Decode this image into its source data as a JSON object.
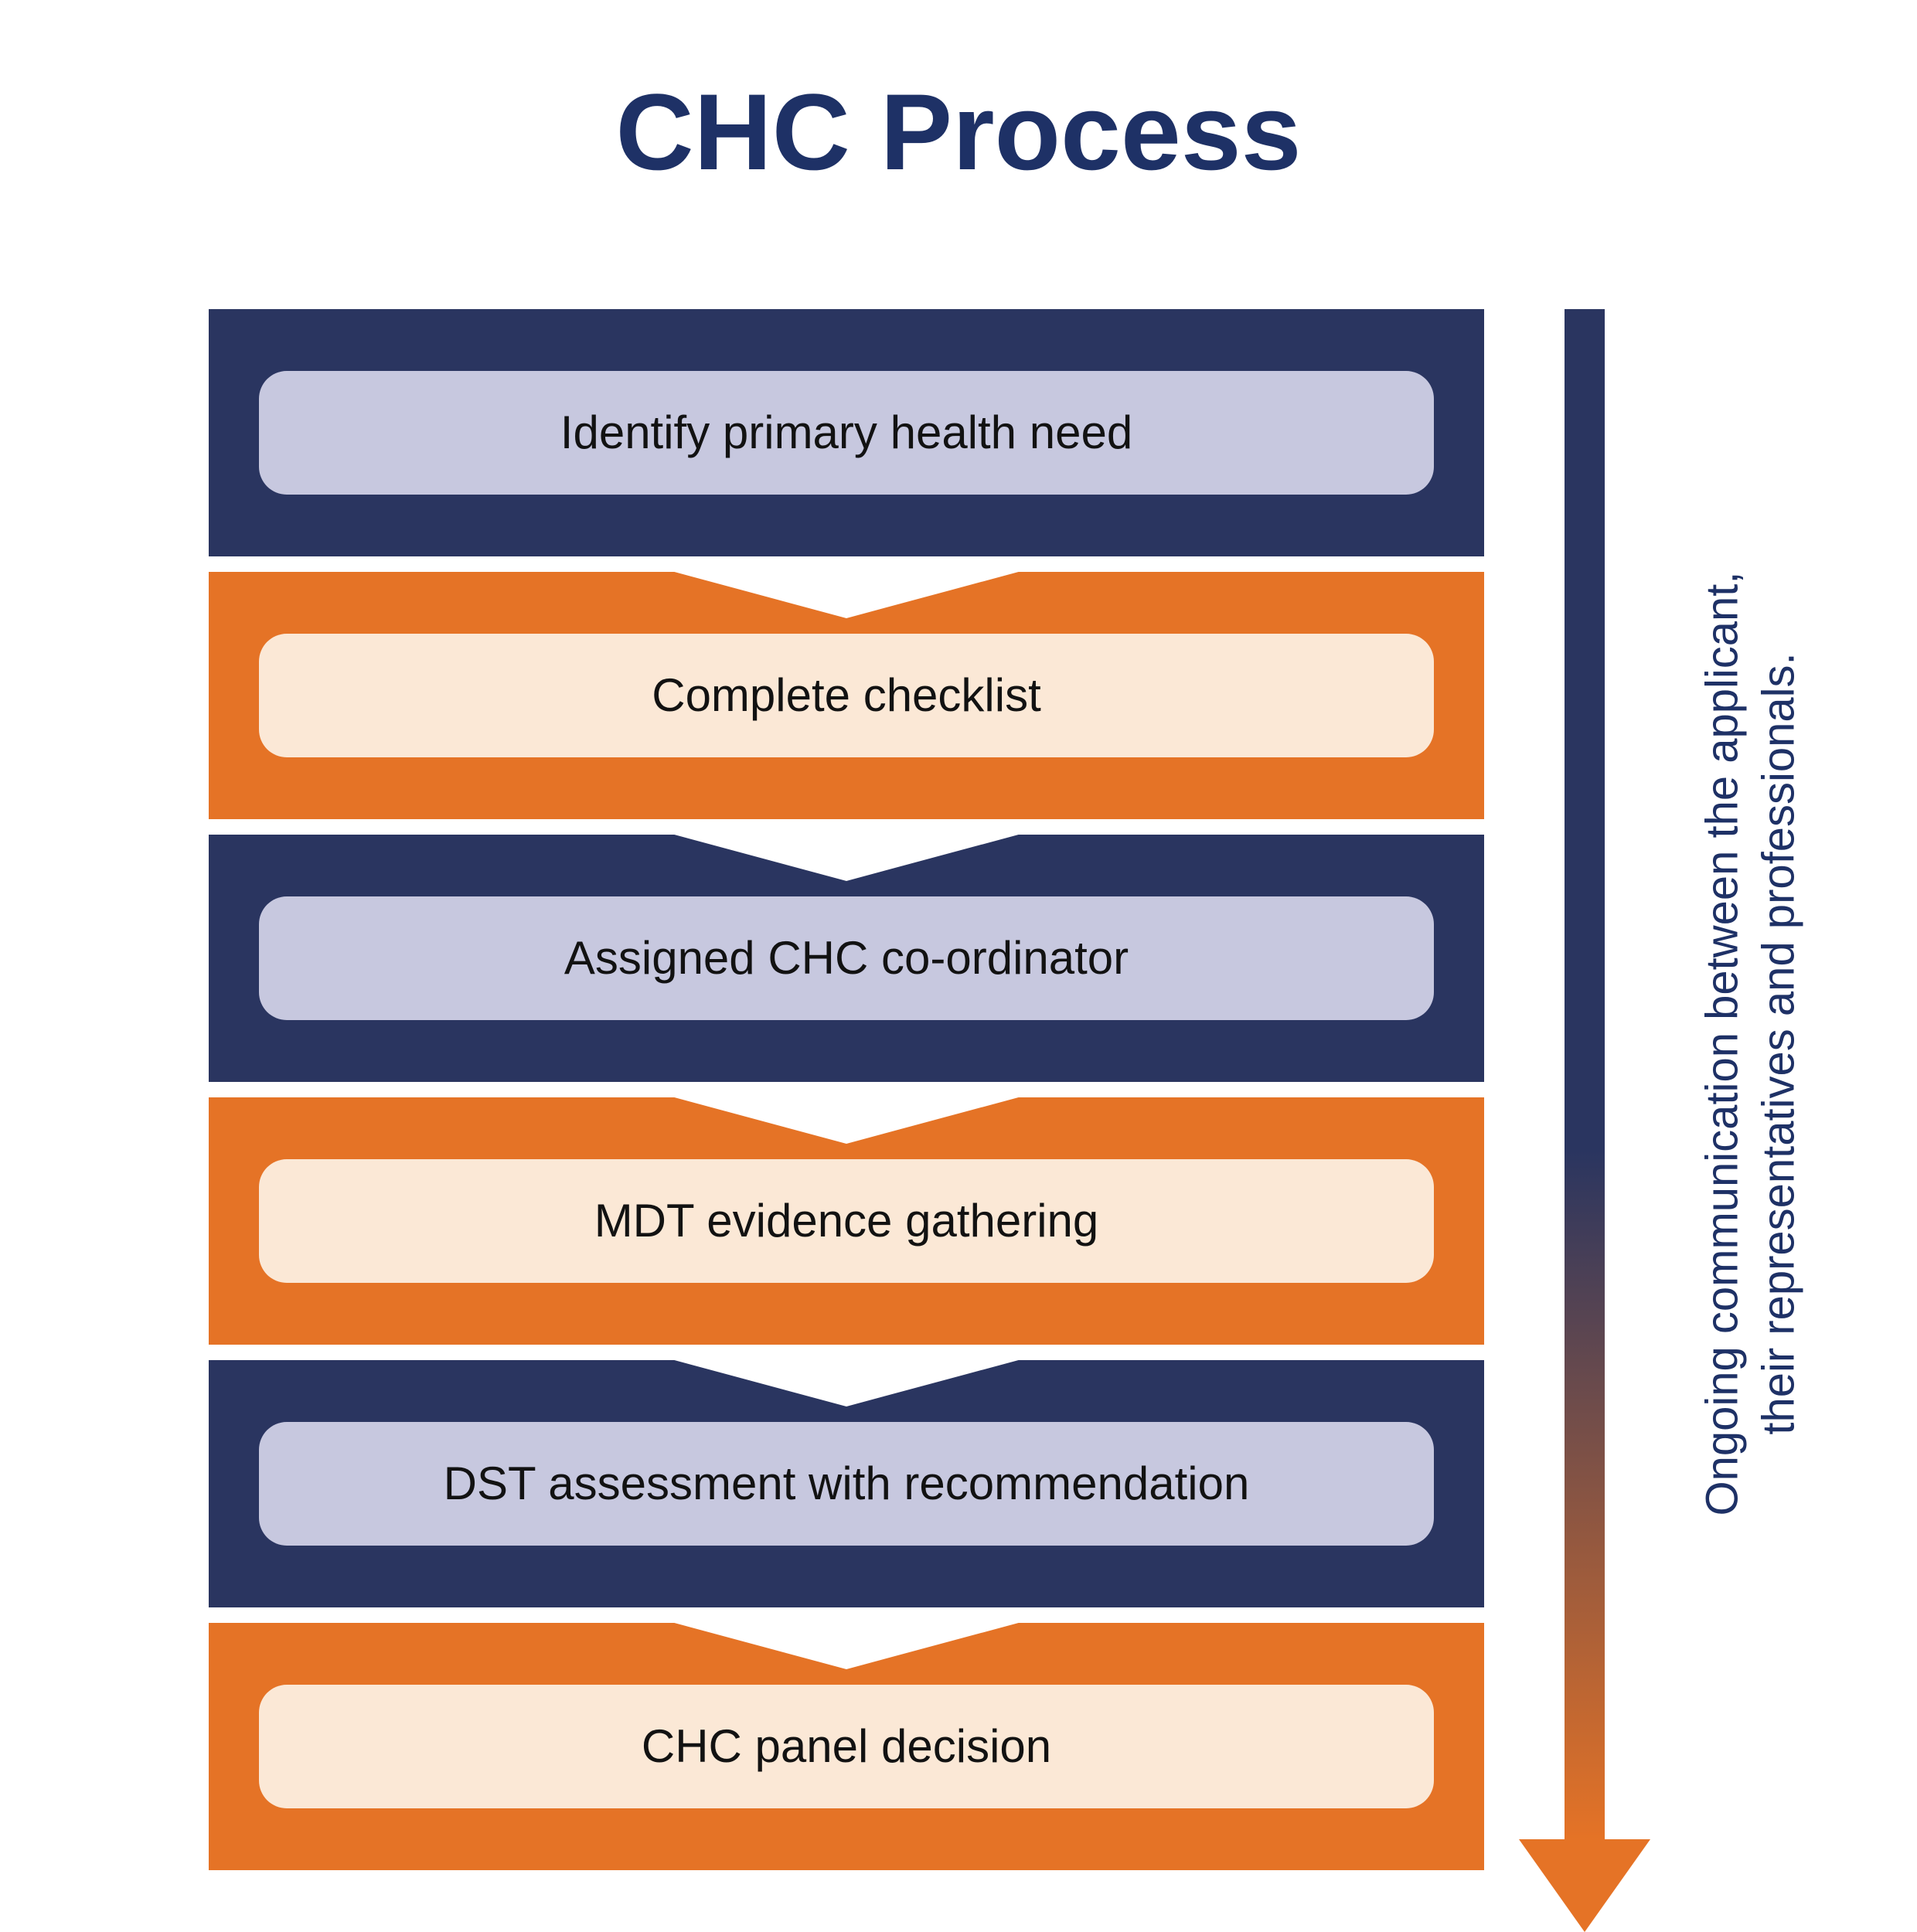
{
  "title": {
    "text": "CHC Process",
    "fontsize": 140,
    "color": "#1e3166"
  },
  "colors": {
    "navy": "#2a3560",
    "orange": "#e57326",
    "label_navy_bg": "#c7c8df",
    "label_orange_bg": "#fbe8d6",
    "label_text": "#121212",
    "white": "#ffffff"
  },
  "flow": {
    "type": "flowchart",
    "step_height": 320,
    "step_gap": 20,
    "label_width": 1520,
    "label_height": 160,
    "label_radius": 36,
    "label_fontsize": 60,
    "notch_width": 460,
    "notch_height": 62,
    "steps": [
      {
        "label": "Identify primary health need",
        "bg": "navy"
      },
      {
        "label": "Complete checklist",
        "bg": "orange"
      },
      {
        "label": "Assigned CHC co-ordinator",
        "bg": "navy"
      },
      {
        "label": "MDT evidence gathering",
        "bg": "orange"
      },
      {
        "label": "DST assessment with recommendation",
        "bg": "navy"
      },
      {
        "label": "CHC panel decision",
        "bg": "orange"
      }
    ]
  },
  "side_arrow": {
    "width": 110,
    "shaft_width": 52,
    "length": 1980,
    "head_width": 170,
    "head_height": 120,
    "gradient_top": "#2a3560",
    "gradient_bottom": "#e57326"
  },
  "side_text": {
    "line1": "Ongoing communication between the applicant,",
    "line2": "their representatives and professionals.",
    "fontsize": 58,
    "color": "#1e3166"
  }
}
